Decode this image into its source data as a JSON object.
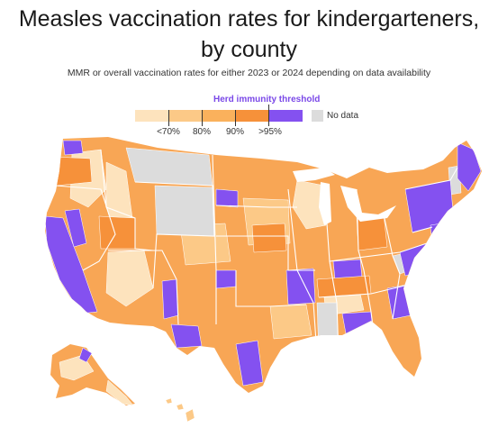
{
  "title_line1": "Measles vaccination rates for kindergarteners,",
  "title_line2": "by county",
  "subtitle": "MMR or overall vaccination rates for either 2023 or 2024 depending on data availability",
  "legend": {
    "herd_label": "Herd immunity threshold",
    "tick_labels": [
      "<70%",
      "80%",
      "90%",
      ">95%"
    ],
    "no_data_label": "No data",
    "bin_colors": [
      "#fde3bd",
      "#fcc987",
      "#fab15c",
      "#f6913a",
      "#8451f0"
    ],
    "no_data_color": "#dcdcdc",
    "herd_color": "#7a48e8"
  },
  "map": {
    "land_color": "#f8a655",
    "border_color": "#ffffff"
  }
}
